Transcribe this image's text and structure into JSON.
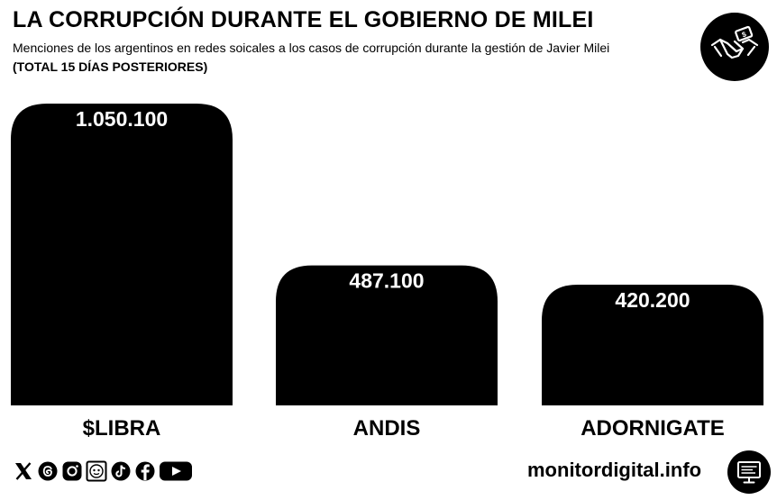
{
  "header": {
    "title": "LA CORRUPCIÓN DURANTE EL GOBIERNO DE MILEI",
    "subtitle": "Menciones de los argentinos en redes soicales a los casos de corrupción durante la gestión de Javier Milei",
    "note": "(TOTAL 15 DÍAS POSTERIORES)"
  },
  "chart_data": {
    "type": "bar",
    "title": "LA CORRUPCIÓN DURANTE EL GOBIERNO DE MILEI",
    "subtitle": "Menciones de los argentinos en redes soicales a los casos de corrupción durante la gestión de Javier Milei",
    "categories": [
      "$LIBRA",
      "ANDIS",
      "ADORNIGATE"
    ],
    "values": [
      1050100,
      487100,
      420200
    ],
    "data_labels": [
      "1.050.100",
      "487.100",
      "420.200"
    ],
    "ylim": [
      0,
      1050100
    ],
    "grid": false,
    "legend": "none",
    "bar_color": "#000000",
    "label_color": "#ffffff"
  },
  "footer": {
    "site": "monitordigital.info",
    "social_icons": [
      "x-icon",
      "threads-icon",
      "instagram-icon",
      "telegram-icon",
      "tiktok-icon",
      "facebook-icon",
      "youtube-icon"
    ],
    "badge_icon": "handshake-money-icon",
    "monitor_icon": "monitor-icon"
  }
}
